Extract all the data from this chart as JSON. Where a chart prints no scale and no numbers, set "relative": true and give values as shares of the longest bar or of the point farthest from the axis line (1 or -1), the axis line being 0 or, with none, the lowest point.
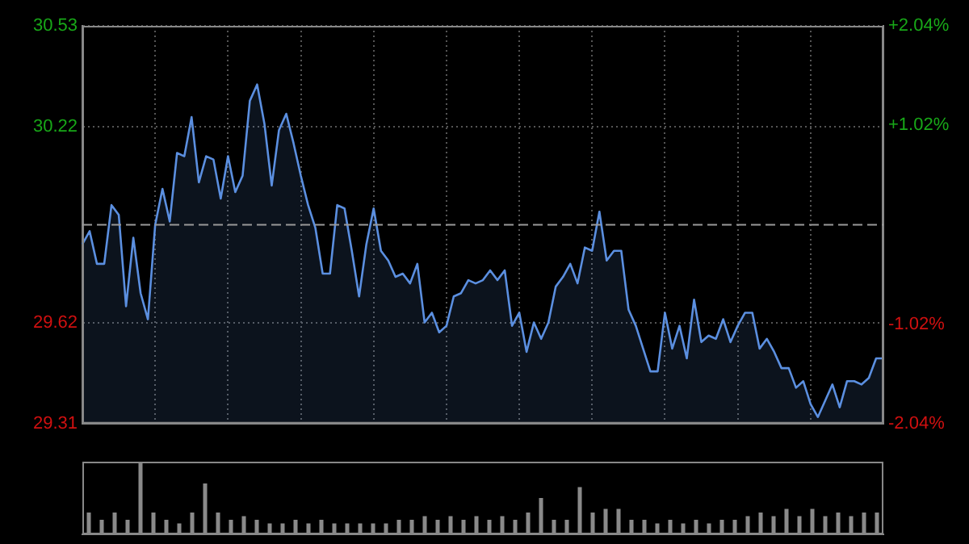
{
  "chart_data": [
    {
      "type": "area",
      "categories": [
        null,
        null,
        null,
        null,
        null,
        null,
        null,
        null,
        null,
        null,
        null,
        null,
        null,
        null,
        null,
        null,
        null,
        null,
        null,
        null,
        null,
        null,
        null,
        null,
        null,
        null,
        null,
        null,
        null,
        null,
        null,
        null,
        null,
        null,
        null,
        null,
        null,
        null,
        null,
        null,
        null,
        null,
        null,
        null,
        null,
        null,
        null,
        null,
        null,
        null,
        null,
        null,
        null,
        null,
        null,
        null,
        null,
        null,
        null,
        null,
        null,
        null,
        null,
        null,
        null,
        null,
        null,
        null,
        null,
        null,
        null,
        null,
        null,
        null,
        null,
        null,
        null,
        null,
        null,
        null,
        null,
        null,
        null,
        null,
        null,
        null,
        null,
        null,
        null,
        null,
        null,
        null,
        null,
        null,
        null,
        null,
        null,
        null,
        null,
        null,
        null,
        null,
        null,
        null,
        null,
        null,
        null,
        null,
        null,
        null,
        null
      ],
      "series": [
        {
          "color": "#5b8fe0",
          "values": [
            29.86,
            29.9,
            29.8,
            29.8,
            29.98,
            29.95,
            29.67,
            29.88,
            29.71,
            29.63,
            29.92,
            30.03,
            29.93,
            30.14,
            30.13,
            30.25,
            30.05,
            30.13,
            30.12,
            30.0,
            30.13,
            30.02,
            30.07,
            30.3,
            30.35,
            30.23,
            30.04,
            30.21,
            30.26,
            30.17,
            30.07,
            29.98,
            29.91,
            29.77,
            29.77,
            29.98,
            29.97,
            29.84,
            29.7,
            29.86,
            29.97,
            29.84,
            29.81,
            29.76,
            29.77,
            29.74,
            29.8,
            29.62,
            29.65,
            29.59,
            29.61,
            29.7,
            29.71,
            29.75,
            29.74,
            29.75,
            29.78,
            29.75,
            29.78,
            29.61,
            29.65,
            29.53,
            29.62,
            29.57,
            29.62,
            29.73,
            29.76,
            29.8,
            29.74,
            29.85,
            29.84,
            29.96,
            29.81,
            29.84,
            29.84,
            29.66,
            29.61,
            29.54,
            29.47,
            29.47,
            29.65,
            29.54,
            29.61,
            29.51,
            29.69,
            29.56,
            29.58,
            29.57,
            29.63,
            29.56,
            29.61,
            29.65,
            29.65,
            29.54,
            29.57,
            29.53,
            29.48,
            29.48,
            29.42,
            29.44,
            29.37,
            29.33,
            29.38,
            29.43,
            29.36,
            29.44,
            29.44,
            29.43,
            29.45,
            29.51,
            29.51
          ]
        }
      ],
      "ylim": [
        29.31,
        30.53
      ],
      "yticks": [
        29.31,
        29.62,
        30.22,
        30.53
      ],
      "y2lim": [
        -2.04,
        2.04
      ],
      "y2ticks": [
        {
          "value": -2.04,
          "label": "-2.04%"
        },
        {
          "value": -1.02,
          "label": "-1.02%"
        },
        {
          "value": 1.02,
          "label": "+1.02%"
        },
        {
          "value": 2.04,
          "label": "+2.04%"
        }
      ],
      "ref_lines": [
        {
          "axis": "y",
          "value": 29.92,
          "line_style": "dashed"
        }
      ],
      "grid": true,
      "legend": false,
      "marker": "none",
      "line_style": "solid",
      "tick_labels": "y"
    },
    {
      "type": "bar",
      "relative": true,
      "categories": [
        null,
        null,
        null,
        null,
        null,
        null,
        null,
        null,
        null,
        null,
        null,
        null,
        null,
        null,
        null,
        null,
        null,
        null,
        null,
        null,
        null,
        null,
        null,
        null,
        null,
        null,
        null,
        null,
        null,
        null,
        null,
        null,
        null,
        null,
        null,
        null,
        null,
        null,
        null,
        null,
        null,
        null,
        null,
        null,
        null,
        null,
        null,
        null,
        null,
        null,
        null,
        null,
        null,
        null,
        null,
        null,
        null,
        null,
        null,
        null,
        null,
        null
      ],
      "values": [
        0.3,
        0.2,
        0.3,
        0.2,
        1,
        0.3,
        0.2,
        0.15,
        0.3,
        0.7,
        0.3,
        0.2,
        0.25,
        0.2,
        0.15,
        0.15,
        0.2,
        0.15,
        0.2,
        0.15,
        0.15,
        0.15,
        0.15,
        0.15,
        0.2,
        0.2,
        0.25,
        0.2,
        0.25,
        0.2,
        0.25,
        0.2,
        0.25,
        0.2,
        0.3,
        0.5,
        0.2,
        0.2,
        0.65,
        0.3,
        0.35,
        0.35,
        0.2,
        0.2,
        0.15,
        0.2,
        0.15,
        0.2,
        0.15,
        0.2,
        0.2,
        0.25,
        0.3,
        0.25,
        0.35,
        0.25,
        0.35,
        0.25,
        0.3,
        0.25,
        0.3,
        0.3
      ],
      "color": "#8a8a8a",
      "tick_labels": false,
      "legend": false
    }
  ]
}
